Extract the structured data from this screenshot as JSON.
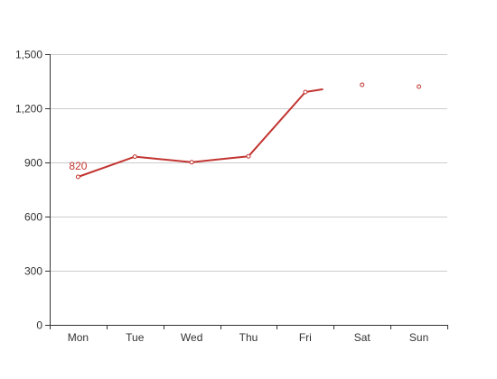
{
  "chart_data": {
    "type": "line",
    "title": "",
    "xlabel": "",
    "ylabel": "",
    "categories": [
      "Mon",
      "Tue",
      "Wed",
      "Thu",
      "Fri",
      "Sat",
      "Sun"
    ],
    "ylim": [
      0,
      1500
    ],
    "yticks": [
      0,
      300,
      600,
      900,
      1200,
      1500
    ],
    "ytick_labels": [
      "0",
      "300",
      "600",
      "900",
      "1,200",
      "1,500"
    ],
    "grid": true,
    "series": [
      {
        "values": [
          820,
          932,
          901,
          934,
          1290,
          1330,
          1320
        ],
        "color": "#c23531",
        "line_drawn_through_points": 5,
        "stub_after_fri": 1305
      }
    ],
    "annotations": [
      {
        "category": "Mon",
        "text": "820"
      }
    ]
  }
}
